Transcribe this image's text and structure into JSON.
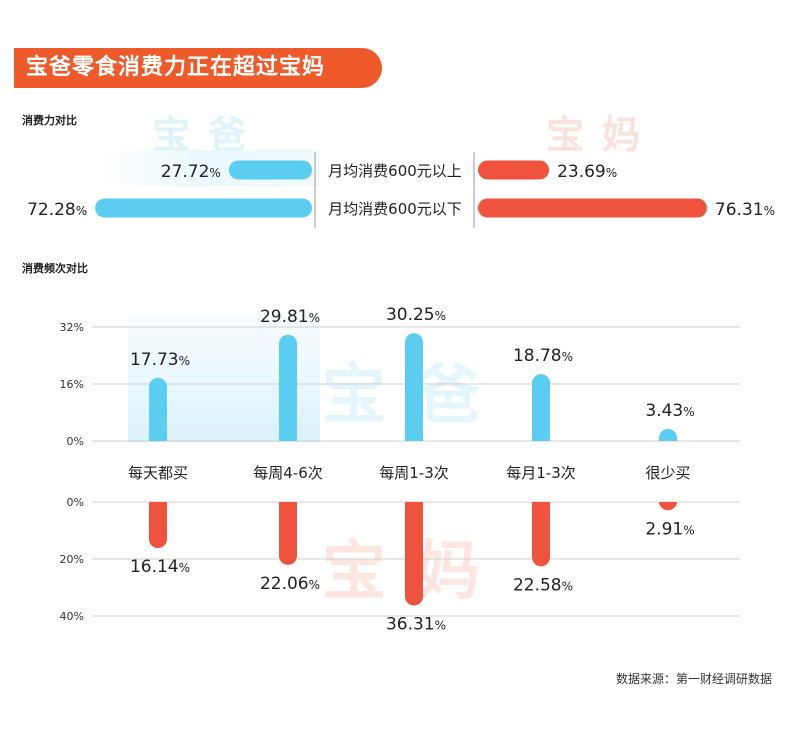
{
  "title": "宝爸零食消费力正在超过宝妈",
  "legend": {
    "dad": "宝爸",
    "mom": "宝妈"
  },
  "colors": {
    "dad": "#5bcdf0",
    "mom": "#f0533d",
    "accent": "#ef5a2a"
  },
  "source": "数据来源：第一财经调研数据",
  "chart_data": [
    {
      "type": "bar",
      "title": "消费力对比",
      "orientation": "horizontal-diverging",
      "categories": [
        "月均消费600元以上",
        "月均消费600元以下"
      ],
      "series": [
        {
          "name": "宝爸",
          "values": [
            27.72,
            72.28
          ],
          "labels": [
            "27.72%",
            "72.28%"
          ]
        },
        {
          "name": "宝妈",
          "values": [
            23.69,
            76.31
          ],
          "labels": [
            "23.69%",
            "76.31%"
          ]
        }
      ]
    },
    {
      "type": "bar",
      "title": "消费频次对比",
      "categories": [
        "每天都买",
        "每周4-6次",
        "每周1-3次",
        "每月1-3次",
        "很少买"
      ],
      "series": [
        {
          "name": "宝爸",
          "values": [
            17.73,
            29.81,
            30.25,
            18.78,
            3.43
          ],
          "labels": [
            "17.73%",
            "29.81%",
            "30.25%",
            "18.78%",
            "3.43%"
          ],
          "axis_ticks": [
            "32%",
            "16%",
            "0%"
          ],
          "ylim": [
            0,
            32
          ]
        },
        {
          "name": "宝妈",
          "values": [
            16.14,
            22.06,
            36.31,
            22.58,
            2.91
          ],
          "labels": [
            "16.14%",
            "22.06%",
            "36.31%",
            "22.58%",
            "2.91%"
          ],
          "axis_ticks": [
            "0%",
            "20%",
            "40%"
          ],
          "ylim": [
            0,
            40
          ]
        }
      ]
    }
  ]
}
